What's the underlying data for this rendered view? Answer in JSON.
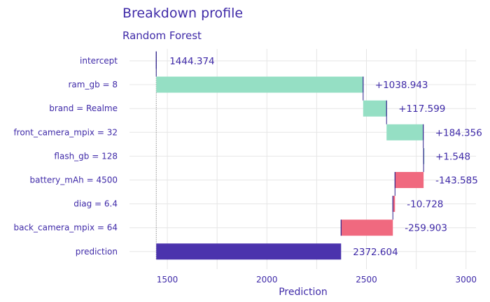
{
  "chart_data": {
    "type": "bar",
    "title": "Breakdown profile",
    "subtitle": "Random Forest",
    "xlabel": "Prediction",
    "ylabel": "",
    "xlim": [
      1310,
      3050
    ],
    "x_ticks": [
      1500,
      2000,
      2500,
      3000
    ],
    "grid": true,
    "colors": {
      "positive": "#95dfc4",
      "negative": "#f0697f",
      "prediction": "#4b33ad",
      "text": "#3f2aa8",
      "grid": "#e6e6e6",
      "connector": "#2c1f8a"
    },
    "rows": [
      {
        "label": "intercept",
        "start": 1444.374,
        "end": 1444.374,
        "value_label": "1444.374",
        "kind": "intercept"
      },
      {
        "label": "ram_gb = 8",
        "start": 1444.374,
        "end": 2483.317,
        "value_label": "+1038.943",
        "kind": "positive"
      },
      {
        "label": "brand = Realme",
        "start": 2483.317,
        "end": 2600.916,
        "value_label": "+117.599",
        "kind": "positive"
      },
      {
        "label": "front_camera_mpix = 32",
        "start": 2600.916,
        "end": 2785.272,
        "value_label": "+184.356",
        "kind": "positive"
      },
      {
        "label": "flash_gb = 128",
        "start": 2785.272,
        "end": 2786.82,
        "value_label": "+1.548",
        "kind": "positive"
      },
      {
        "label": "battery_mAh = 4500",
        "start": 2786.82,
        "end": 2643.235,
        "value_label": "-143.585",
        "kind": "negative"
      },
      {
        "label": "diag = 6.4",
        "start": 2643.235,
        "end": 2632.507,
        "value_label": "-10.728",
        "kind": "negative"
      },
      {
        "label": "back_camera_mpix = 64",
        "start": 2632.507,
        "end": 2372.604,
        "value_label": "-259.903",
        "kind": "negative"
      },
      {
        "label": "prediction",
        "start": 1444.374,
        "end": 2372.604,
        "value_label": "2372.604",
        "kind": "prediction"
      }
    ]
  }
}
